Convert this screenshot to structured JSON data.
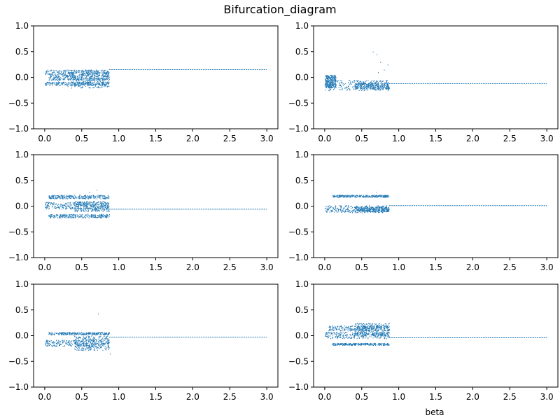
{
  "figure": {
    "title": "Bifurcation_diagram",
    "xlabel": "beta"
  },
  "colors": {
    "series": "#1f77b4",
    "axes": "#000000",
    "background": "#ffffff"
  },
  "chart_data": [
    {
      "type": "scatter",
      "row": 0,
      "col": 0,
      "xlim": [
        -0.15,
        3.15
      ],
      "ylim": [
        -1.0,
        1.0
      ],
      "xticks": [
        0.0,
        0.5,
        1.0,
        1.5,
        2.0,
        2.5,
        3.0
      ],
      "yticks": [
        -1.0,
        -0.5,
        0.0,
        0.5,
        1.0
      ],
      "grid": false,
      "bands": [
        {
          "x": [
            0.0,
            0.87
          ],
          "y": [
            0.05,
            0.15
          ]
        },
        {
          "x": [
            0.0,
            0.87
          ],
          "y": [
            -0.15,
            -0.08
          ]
        },
        {
          "x": [
            0.05,
            0.87
          ],
          "y": [
            -0.05,
            0.05
          ]
        },
        {
          "x": [
            0.3,
            0.87
          ],
          "y": [
            -0.2,
            0.15
          ]
        }
      ],
      "stable": {
        "x": [
          0.87,
          3.0
        ],
        "y": 0.15
      }
    },
    {
      "type": "scatter",
      "row": 0,
      "col": 1,
      "xlim": [
        -0.15,
        3.15
      ],
      "ylim": [
        -1.0,
        1.0
      ],
      "xticks": [
        0.0,
        0.5,
        1.0,
        1.5,
        2.0,
        2.5,
        3.0
      ],
      "yticks": [
        -1.0,
        -0.5,
        0.0,
        0.5,
        1.0
      ],
      "grid": false,
      "bands": [
        {
          "x": [
            0.0,
            0.87
          ],
          "y": [
            -0.25,
            -0.05
          ]
        },
        {
          "x": [
            0.4,
            0.87
          ],
          "y": [
            -0.22,
            -0.1
          ]
        },
        {
          "x": [
            0.0,
            0.15
          ],
          "y": [
            -0.2,
            0.05
          ]
        }
      ],
      "outliers": [
        [
          0.65,
          0.5
        ],
        [
          0.7,
          0.45
        ],
        [
          0.75,
          0.3
        ],
        [
          0.8,
          0.15
        ],
        [
          0.85,
          0.25
        ],
        [
          0.72,
          0.1
        ]
      ],
      "stable": {
        "x": [
          0.87,
          3.0
        ],
        "y": -0.12
      }
    },
    {
      "type": "scatter",
      "row": 1,
      "col": 0,
      "xlim": [
        -0.15,
        3.15
      ],
      "ylim": [
        -1.0,
        1.0
      ],
      "xticks": [
        0.0,
        0.5,
        1.0,
        1.5,
        2.0,
        2.5,
        3.0
      ],
      "yticks": [
        -1.0,
        -0.5,
        0.0,
        0.5,
        1.0
      ],
      "grid": false,
      "bands": [
        {
          "x": [
            0.05,
            0.87
          ],
          "y": [
            0.15,
            0.22
          ]
        },
        {
          "x": [
            0.05,
            0.87
          ],
          "y": [
            -0.22,
            -0.15
          ]
        },
        {
          "x": [
            0.0,
            0.87
          ],
          "y": [
            -0.05,
            0.08
          ]
        },
        {
          "x": [
            0.4,
            0.87
          ],
          "y": [
            -0.1,
            0.1
          ]
        }
      ],
      "outliers": [
        [
          0.7,
          0.32
        ],
        [
          0.6,
          0.28
        ]
      ],
      "stable": {
        "x": [
          0.87,
          3.0
        ],
        "y": -0.06
      }
    },
    {
      "type": "scatter",
      "row": 1,
      "col": 1,
      "xlim": [
        -0.15,
        3.15
      ],
      "ylim": [
        -1.0,
        1.0
      ],
      "xticks": [
        0.0,
        0.5,
        1.0,
        1.5,
        2.0,
        2.5,
        3.0
      ],
      "yticks": [
        -1.0,
        -0.5,
        0.0,
        0.5,
        1.0
      ],
      "grid": false,
      "bands": [
        {
          "x": [
            0.1,
            0.87
          ],
          "y": [
            0.18,
            0.22
          ]
        },
        {
          "x": [
            0.0,
            0.87
          ],
          "y": [
            -0.12,
            0.02
          ]
        },
        {
          "x": [
            0.4,
            0.87
          ],
          "y": [
            -0.1,
            0.0
          ]
        }
      ],
      "outliers": [
        [
          0.7,
          0.28
        ]
      ],
      "stable": {
        "x": [
          0.87,
          3.0
        ],
        "y": 0.01
      }
    },
    {
      "type": "scatter",
      "row": 2,
      "col": 0,
      "xlim": [
        -0.15,
        3.15
      ],
      "ylim": [
        -1.0,
        1.0
      ],
      "xticks": [
        0.0,
        0.5,
        1.0,
        1.5,
        2.0,
        2.5,
        3.0
      ],
      "yticks": [
        -1.0,
        -0.5,
        0.0,
        0.5,
        1.0
      ],
      "grid": false,
      "bands": [
        {
          "x": [
            0.05,
            0.87
          ],
          "y": [
            0.02,
            0.07
          ]
        },
        {
          "x": [
            0.0,
            0.87
          ],
          "y": [
            -0.2,
            -0.08
          ]
        },
        {
          "x": [
            0.4,
            0.87
          ],
          "y": [
            -0.28,
            0.0
          ]
        }
      ],
      "outliers": [
        [
          0.72,
          0.43
        ],
        [
          0.88,
          -0.35
        ]
      ],
      "stable": {
        "x": [
          0.87,
          3.0
        ],
        "y": -0.03
      }
    },
    {
      "type": "scatter",
      "row": 2,
      "col": 1,
      "xlim": [
        -0.15,
        3.15
      ],
      "ylim": [
        -1.0,
        1.0
      ],
      "xticks": [
        0.0,
        0.5,
        1.0,
        1.5,
        2.0,
        2.5,
        3.0
      ],
      "yticks": [
        -1.0,
        -0.5,
        0.0,
        0.5,
        1.0
      ],
      "grid": false,
      "bands": [
        {
          "x": [
            0.05,
            0.87
          ],
          "y": [
            0.1,
            0.2
          ]
        },
        {
          "x": [
            0.0,
            0.87
          ],
          "y": [
            -0.05,
            0.08
          ]
        },
        {
          "x": [
            0.1,
            0.87
          ],
          "y": [
            -0.18,
            -0.14
          ]
        },
        {
          "x": [
            0.4,
            0.87
          ],
          "y": [
            0.0,
            0.25
          ]
        }
      ],
      "stable": {
        "x": [
          0.87,
          3.0
        ],
        "y": -0.04
      }
    }
  ]
}
